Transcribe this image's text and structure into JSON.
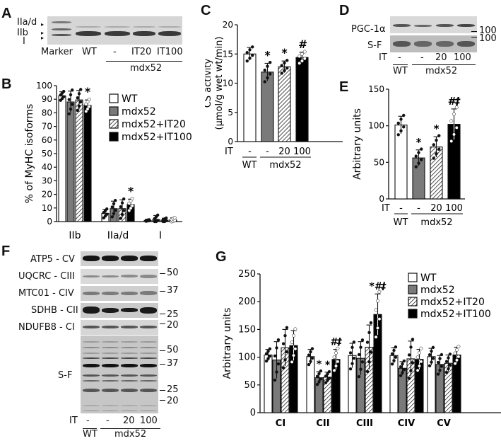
{
  "panels": {
    "A": {
      "letter": "A",
      "band_labels": [
        "IIa/d",
        "IIb",
        "I"
      ],
      "lane_labels": [
        "Marker",
        "WT",
        "-",
        "IT20",
        "IT100"
      ],
      "group_label": "mdx52"
    },
    "C": {
      "letter": "C"
    },
    "D": {
      "letter": "D",
      "rows": [
        "PGC-1α",
        "S-F"
      ],
      "markers": [
        "100",
        "100"
      ],
      "it_label": "IT",
      "it_values": [
        "-",
        "-",
        "20",
        "100"
      ],
      "wt_label": "WT",
      "group_label": "mdx52"
    },
    "E": {
      "letter": "E"
    },
    "F": {
      "letter": "F",
      "rows": [
        "ATP5 - CV",
        "UQCRC - CIII",
        "MTC01 - CIV",
        "SDHB - CII",
        "NDUFB8 - CI"
      ],
      "markers_top": [
        "50",
        "37",
        "25",
        "20"
      ],
      "sf_label": "S-F",
      "markers_sf": [
        "50",
        "37",
        "25",
        "20"
      ],
      "it_label": "IT",
      "it_values": [
        "-",
        "-",
        "20",
        "100"
      ],
      "wt_label": "WT",
      "group_label": "mdx52"
    },
    "G": {
      "letter": "G"
    }
  },
  "legend": {
    "items": [
      {
        "label": "WT",
        "fill": "#ffffff"
      },
      {
        "label": "mdx52",
        "fill": "#7a7a7a"
      },
      {
        "label": "mdx52+IT20",
        "fill": "hatch"
      },
      {
        "label": "mdx52+IT100",
        "fill": "#000000"
      }
    ]
  },
  "colors": {
    "wt": "#ffffff",
    "mdx52": "#7a7a7a",
    "it100": "#000000",
    "axis": "#111111"
  },
  "chart_data": [
    {
      "id": "B",
      "type": "bar",
      "title": "",
      "xlabel": "",
      "ylabel": "% of MyHC isoforms",
      "ylim": [
        0,
        100
      ],
      "yticks": [
        0,
        10,
        20,
        30,
        40,
        50,
        60,
        70,
        80,
        90,
        100
      ],
      "categories": [
        "IIb",
        "IIa/d",
        "I"
      ],
      "series": [
        {
          "name": "WT",
          "values": [
            92.5,
            6,
            0.8
          ],
          "err": [
            3,
            3,
            0.5
          ]
        },
        {
          "name": "mdx52",
          "values": [
            88,
            9.5,
            1.5
          ],
          "err": [
            8,
            5.5,
            3
          ]
        },
        {
          "name": "mdx52+IT20",
          "values": [
            89.5,
            9.5,
            1
          ],
          "err": [
            7,
            6.5,
            1.5
          ]
        },
        {
          "name": "mdx52+IT100",
          "values": [
            85.5,
            12.5,
            1.2
          ],
          "err": [
            4,
            4,
            1.5
          ]
        }
      ],
      "annotations": [
        {
          "category": "IIb",
          "series": "mdx52+IT100",
          "text": "*"
        },
        {
          "category": "IIa/d",
          "series": "mdx52+IT100",
          "text": "*"
        }
      ],
      "legend_position": "upper right"
    },
    {
      "id": "C",
      "type": "bar",
      "ylabel": "CS activity (μmol/g wet wt/min)",
      "ylim": [
        0,
        20
      ],
      "yticks": [
        0,
        5,
        10,
        15,
        20
      ],
      "categories": [
        "WT",
        "mdx52",
        "mdx52+IT20",
        "mdx52+IT100"
      ],
      "values": [
        15,
        11.9,
        12.8,
        14.4
      ],
      "err": [
        1.1,
        1.5,
        1.0,
        0.9
      ],
      "annotations": [
        "",
        "*",
        "*",
        "#"
      ],
      "x_it_labels": [
        "-",
        "-",
        "20",
        "100"
      ],
      "x_group_labels": [
        "WT",
        "mdx52"
      ]
    },
    {
      "id": "E",
      "type": "bar",
      "ylabel": "Arbitrary units",
      "ylim": [
        0,
        150
      ],
      "yticks": [
        0,
        50,
        100,
        150
      ],
      "categories": [
        "WT",
        "mdx52",
        "mdx52+IT20",
        "mdx52+IT100"
      ],
      "values": [
        101,
        56,
        71,
        102
      ],
      "err": [
        12,
        11,
        14,
        21
      ],
      "annotations": [
        "",
        "*",
        "*",
        "#‡"
      ],
      "x_it_labels": [
        "-",
        "-",
        "20",
        "100"
      ],
      "x_group_labels": [
        "WT",
        "mdx52"
      ]
    },
    {
      "id": "G",
      "type": "bar",
      "ylabel": "Arbitrary units",
      "ylim": [
        0,
        250
      ],
      "yticks": [
        0,
        50,
        100,
        150,
        200,
        250
      ],
      "categories": [
        "CI",
        "CII",
        "CIII",
        "CIV",
        "CV"
      ],
      "series": [
        {
          "name": "WT",
          "values": [
            104,
            101,
            103,
            103,
            101
          ],
          "err": [
            10,
            13,
            22,
            14,
            15
          ]
        },
        {
          "name": "mdx52",
          "values": [
            95,
            63,
            98,
            80,
            87
          ],
          "err": [
            33,
            11,
            30,
            12,
            16
          ]
        },
        {
          "name": "mdx52+IT20",
          "values": [
            117,
            64,
            118,
            97,
            89
          ],
          "err": [
            33,
            9,
            40,
            32,
            15
          ]
        },
        {
          "name": "mdx52+IT100",
          "values": [
            121,
            96,
            177,
            96,
            104
          ],
          "err": [
            27,
            18,
            37,
            18,
            14
          ]
        }
      ],
      "annotations": [
        {
          "category": "CII",
          "series": "mdx52",
          "text": "*"
        },
        {
          "category": "CII",
          "series": "mdx52+IT20",
          "text": "*"
        },
        {
          "category": "CII",
          "series": "mdx52+IT100",
          "text": "#‡"
        },
        {
          "category": "CIII",
          "series": "mdx52+IT100",
          "text": "*#‡"
        }
      ],
      "legend_position": "upper right"
    }
  ]
}
